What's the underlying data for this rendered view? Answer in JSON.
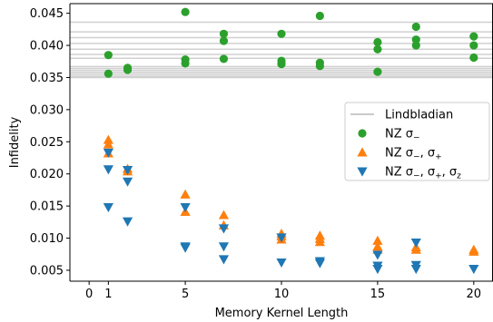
{
  "chart_data": {
    "type": "scatter",
    "xlabel": "Memory Kernel Length",
    "ylabel": "Infidelity",
    "xlim": [
      -1,
      21
    ],
    "ylim": [
      0.0033,
      0.0465
    ],
    "xticks": [
      0,
      1,
      5,
      10,
      15,
      20
    ],
    "xtick_labels": [
      "0",
      "1",
      "5",
      "10",
      "15",
      "20"
    ],
    "yticks": [
      0.005,
      0.01,
      0.015,
      0.02,
      0.025,
      0.03,
      0.035,
      0.04,
      0.045
    ],
    "ytick_labels": [
      "0.005",
      "0.010",
      "0.015",
      "0.020",
      "0.025",
      "0.030",
      "0.035",
      "0.040",
      "0.045"
    ],
    "grid": false,
    "legend_position": "right",
    "lindbladian": {
      "name": "Lindbladian",
      "color": "#aaaaaa",
      "values": [
        0.0436,
        0.0421,
        0.0412,
        0.0403,
        0.0394,
        0.0386,
        0.038,
        0.0367,
        0.0364,
        0.0361,
        0.0358,
        0.0355,
        0.0352,
        0.035
      ]
    },
    "series": [
      {
        "name": "NZ σ₋",
        "legend_main": "NZ σ",
        "legend_sub": "−",
        "marker": "circle",
        "color": "#2ca02c",
        "points": [
          [
            1,
            0.0385
          ],
          [
            1,
            0.0356
          ],
          [
            2,
            0.0365
          ],
          [
            2,
            0.0362
          ],
          [
            5,
            0.0452
          ],
          [
            5,
            0.0378
          ],
          [
            5,
            0.0372
          ],
          [
            7,
            0.0418
          ],
          [
            7,
            0.0407
          ],
          [
            7,
            0.0379
          ],
          [
            10,
            0.0418
          ],
          [
            10,
            0.0376
          ],
          [
            10,
            0.0371
          ],
          [
            12,
            0.0446
          ],
          [
            12,
            0.0373
          ],
          [
            12,
            0.0368
          ],
          [
            15,
            0.0405
          ],
          [
            15,
            0.0394
          ],
          [
            15,
            0.0359
          ],
          [
            17,
            0.0429
          ],
          [
            17,
            0.0409
          ],
          [
            17,
            0.04
          ],
          [
            20,
            0.0414
          ],
          [
            20,
            0.04
          ],
          [
            20,
            0.0381
          ]
        ]
      },
      {
        "name": "NZ σ₋, σ₊",
        "legend_main": "NZ σ",
        "legend_sub": "−",
        "legend_main2": ",  σ",
        "legend_sub2": "+",
        "marker": "triangle-up",
        "color": "#ff7f0e",
        "points": [
          [
            1,
            0.0253
          ],
          [
            1,
            0.0246
          ],
          [
            1,
            0.0232
          ],
          [
            2,
            0.0208
          ],
          [
            2,
            0.0204
          ],
          [
            5,
            0.0168
          ],
          [
            5,
            0.0141
          ],
          [
            7,
            0.0136
          ],
          [
            7,
            0.012
          ],
          [
            10,
            0.0107
          ],
          [
            10,
            0.0103
          ],
          [
            10,
            0.0098
          ],
          [
            12,
            0.0104
          ],
          [
            12,
            0.0099
          ],
          [
            12,
            0.0094
          ],
          [
            15,
            0.0096
          ],
          [
            15,
            0.0087
          ],
          [
            15,
            0.0082
          ],
          [
            17,
            0.0086
          ],
          [
            17,
            0.0082
          ],
          [
            20,
            0.0082
          ],
          [
            20,
            0.0079
          ]
        ]
      },
      {
        "name": "NZ σ₋, σ₊, σ_z",
        "legend_main": "NZ σ",
        "legend_sub": "−",
        "legend_main2": ",  σ",
        "legend_sub2": "+",
        "legend_main3": ",  σ",
        "legend_sub3": "z",
        "marker": "triangle-down",
        "color": "#1f77b4",
        "points": [
          [
            1,
            0.0233
          ],
          [
            1,
            0.0207
          ],
          [
            1,
            0.0148
          ],
          [
            2,
            0.0206
          ],
          [
            2,
            0.0188
          ],
          [
            2,
            0.0126
          ],
          [
            5,
            0.0148
          ],
          [
            5,
            0.0087
          ],
          [
            5,
            0.0085
          ],
          [
            7,
            0.0115
          ],
          [
            7,
            0.0087
          ],
          [
            7,
            0.0067
          ],
          [
            10,
            0.0101
          ],
          [
            10,
            0.0062
          ],
          [
            12,
            0.0064
          ],
          [
            12,
            0.0061
          ],
          [
            15,
            0.0074
          ],
          [
            15,
            0.0057
          ],
          [
            15,
            0.0052
          ],
          [
            17,
            0.0093
          ],
          [
            17,
            0.0058
          ],
          [
            17,
            0.0052
          ],
          [
            20,
            0.0052
          ]
        ]
      }
    ]
  }
}
